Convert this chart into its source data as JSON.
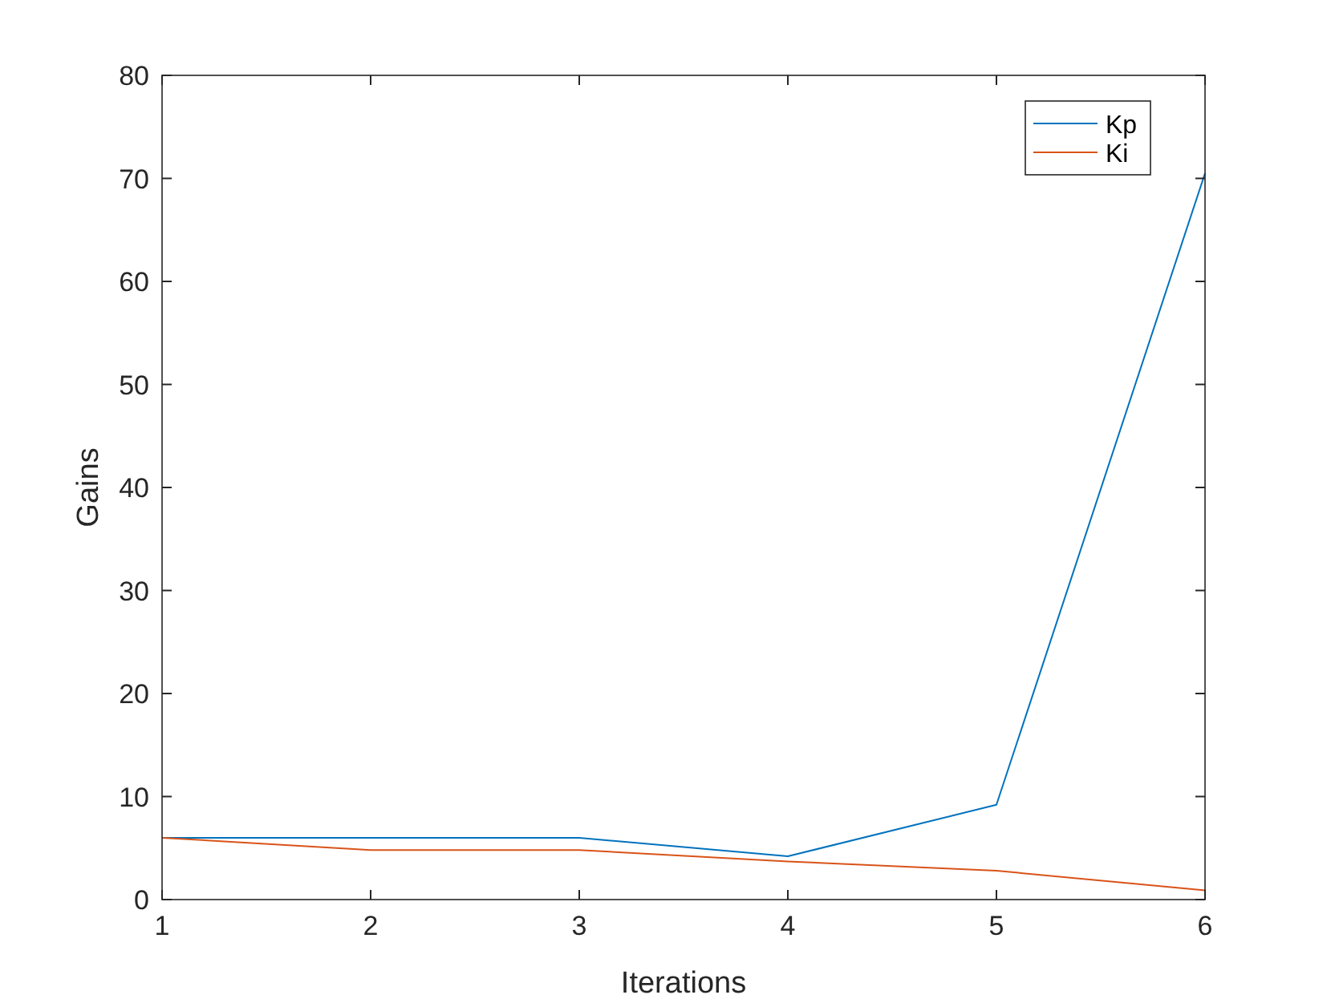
{
  "chart_data": {
    "type": "line",
    "xlabel": "Iterations",
    "ylabel": "Gains",
    "x": [
      1,
      2,
      3,
      4,
      5,
      6
    ],
    "series": [
      {
        "name": "Kp",
        "color": "#0072bd",
        "values": [
          6,
          6,
          6,
          4.2,
          9.2,
          70.5
        ]
      },
      {
        "name": "Ki",
        "color": "#d95319",
        "values": [
          6,
          4.8,
          4.8,
          3.7,
          2.8,
          0.9
        ]
      }
    ],
    "xlim": [
      1,
      6
    ],
    "xticks": [
      1,
      2,
      3,
      4,
      5,
      6
    ],
    "ylim": [
      0,
      80
    ],
    "yticks": [
      0,
      10,
      20,
      30,
      40,
      50,
      60,
      70,
      80
    ],
    "grid": false,
    "legend": "top right"
  }
}
